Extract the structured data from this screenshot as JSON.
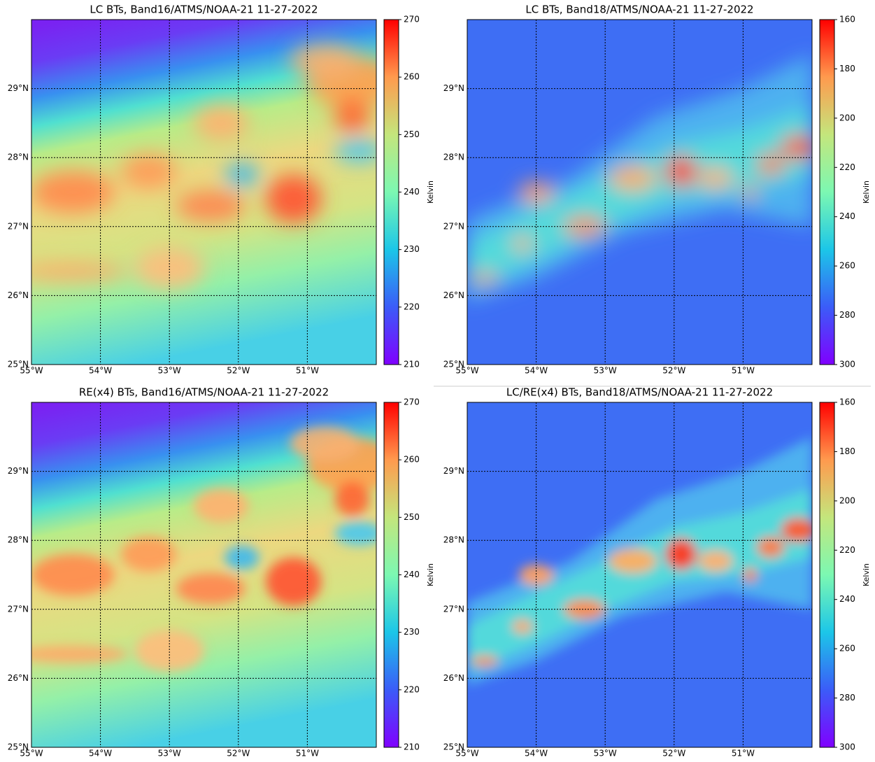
{
  "chart_data": [
    {
      "type": "heatmap",
      "title": "LC BTs, Band16/ATMS/NOAA-21 11-27-2022",
      "colormap": "rainbow",
      "grid": true,
      "xlim": [
        -55,
        -50
      ],
      "ylim": [
        25,
        30
      ],
      "xticks": [
        {
          "value": -55,
          "label": "55°W"
        },
        {
          "value": -54,
          "label": "54°W"
        },
        {
          "value": -53,
          "label": "53°W"
        },
        {
          "value": -52,
          "label": "52°W"
        },
        {
          "value": -51,
          "label": "51°W"
        }
      ],
      "yticks": [
        {
          "value": 25,
          "label": "25°N"
        },
        {
          "value": 26,
          "label": "26°N"
        },
        {
          "value": 27,
          "label": "27°N"
        },
        {
          "value": 28,
          "label": "28°N"
        },
        {
          "value": 29,
          "label": "29°N"
        }
      ],
      "colorbar": {
        "label": "Kelvin",
        "clim": [
          210,
          270
        ],
        "ticks": [
          210,
          220,
          230,
          240,
          250,
          260,
          270
        ]
      }
    },
    {
      "type": "heatmap",
      "title": "LC BTs, Band18/ATMS/NOAA-21 11-27-2022",
      "colormap": "rainbow",
      "grid": true,
      "xlim": [
        -55,
        -50
      ],
      "ylim": [
        25,
        30
      ],
      "xticks": [
        {
          "value": -55,
          "label": "55°W"
        },
        {
          "value": -54,
          "label": "54°W"
        },
        {
          "value": -53,
          "label": "53°W"
        },
        {
          "value": -52,
          "label": "52°W"
        },
        {
          "value": -51,
          "label": "51°W"
        }
      ],
      "yticks": [
        {
          "value": 25,
          "label": "25°N"
        },
        {
          "value": 26,
          "label": "26°N"
        },
        {
          "value": 27,
          "label": "27°N"
        },
        {
          "value": 28,
          "label": "28°N"
        },
        {
          "value": 29,
          "label": "29°N"
        }
      ],
      "colorbar": {
        "label": "Kelvin",
        "clim": [
          300,
          160
        ],
        "ticks": [
          160,
          180,
          200,
          220,
          240,
          260,
          280,
          300
        ]
      }
    },
    {
      "type": "heatmap",
      "title": "RE(x4) BTs, Band16/ATMS/NOAA-21 11-27-2022",
      "colormap": "rainbow",
      "grid": true,
      "xlim": [
        -55,
        -50
      ],
      "ylim": [
        25,
        30
      ],
      "xticks": [
        {
          "value": -55,
          "label": "55°W"
        },
        {
          "value": -54,
          "label": "54°W"
        },
        {
          "value": -53,
          "label": "53°W"
        },
        {
          "value": -52,
          "label": "52°W"
        },
        {
          "value": -51,
          "label": "51°W"
        }
      ],
      "yticks": [
        {
          "value": 25,
          "label": "25°N"
        },
        {
          "value": 26,
          "label": "26°N"
        },
        {
          "value": 27,
          "label": "27°N"
        },
        {
          "value": 28,
          "label": "28°N"
        },
        {
          "value": 29,
          "label": "29°N"
        }
      ],
      "colorbar": {
        "label": "Kelvin",
        "clim": [
          210,
          270
        ],
        "ticks": [
          210,
          220,
          230,
          240,
          250,
          260,
          270
        ]
      }
    },
    {
      "type": "heatmap",
      "title": "LC/RE(x4) BTs, Band18/ATMS/NOAA-21 11-27-2022",
      "colormap": "rainbow",
      "grid": true,
      "xlim": [
        -55,
        -50
      ],
      "ylim": [
        25,
        30
      ],
      "xticks": [
        {
          "value": -55,
          "label": "55°W"
        },
        {
          "value": -54,
          "label": "54°W"
        },
        {
          "value": -53,
          "label": "53°W"
        },
        {
          "value": -52,
          "label": "52°W"
        },
        {
          "value": -51,
          "label": "51°W"
        }
      ],
      "yticks": [
        {
          "value": 25,
          "label": "25°N"
        },
        {
          "value": 26,
          "label": "26°N"
        },
        {
          "value": 27,
          "label": "27°N"
        },
        {
          "value": 28,
          "label": "28°N"
        },
        {
          "value": 29,
          "label": "29°N"
        }
      ],
      "colorbar": {
        "label": "Kelvin",
        "clim": [
          300,
          160
        ],
        "ticks": [
          160,
          180,
          200,
          220,
          240,
          260,
          280,
          300
        ]
      }
    }
  ]
}
